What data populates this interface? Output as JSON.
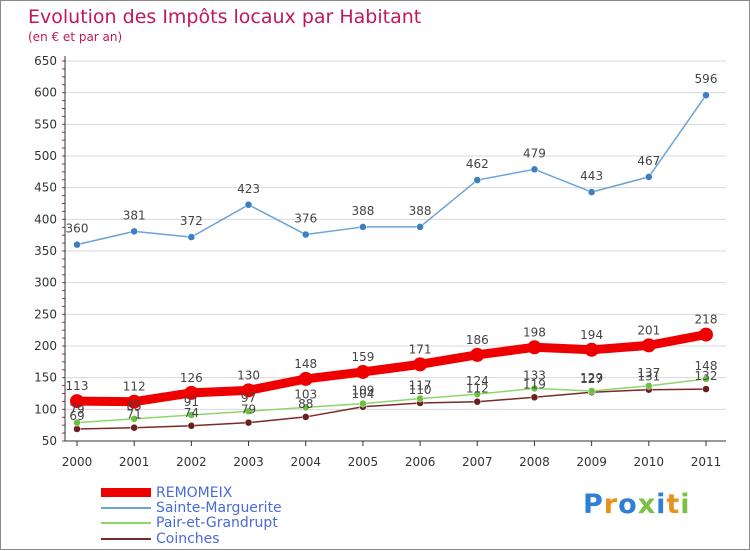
{
  "header": {
    "title": "Evolution des Impôts locaux par Habitant",
    "subtitle": "(en € et par an)"
  },
  "logo": {
    "text": "Proxiti",
    "colors": [
      "#2f7fd6",
      "#e8921e",
      "#2f7fd6",
      "#7cc242",
      "#2f7fd6",
      "#e8921e",
      "#7cc242"
    ]
  },
  "chart_data": {
    "type": "line",
    "title": "Evolution des Impôts locaux par Habitant",
    "subtitle": "(en € et par an)",
    "x": [
      "2000",
      "2001",
      "2002",
      "2003",
      "2004",
      "2005",
      "2006",
      "2007",
      "2008",
      "2009",
      "2010",
      "2011"
    ],
    "ylim": [
      50,
      650
    ],
    "yticks": [
      50,
      100,
      150,
      200,
      250,
      300,
      350,
      400,
      450,
      500,
      550,
      600,
      650
    ],
    "grid": "horizontal",
    "legend_position": "bottom-left",
    "series": [
      {
        "name": "REMOMEIX",
        "color": "#ee0000",
        "values": [
          113,
          112,
          126,
          130,
          148,
          159,
          171,
          186,
          198,
          194,
          201,
          218
        ]
      },
      {
        "name": "Sainte-Marguerite",
        "color": "#6ba3d6",
        "values": [
          360,
          381,
          372,
          423,
          376,
          388,
          388,
          462,
          479,
          443,
          467,
          596
        ]
      },
      {
        "name": "Pair-et-Grandrupt",
        "color": "#8ed66b",
        "values": [
          79,
          85,
          91,
          97,
          103,
          109,
          117,
          124,
          133,
          129,
          137,
          148
        ]
      },
      {
        "name": "Coinches",
        "color": "#7a2a2a",
        "values": [
          69,
          71,
          74,
          79,
          88,
          104,
          110,
          112,
          119,
          127,
          131,
          132
        ]
      }
    ]
  }
}
